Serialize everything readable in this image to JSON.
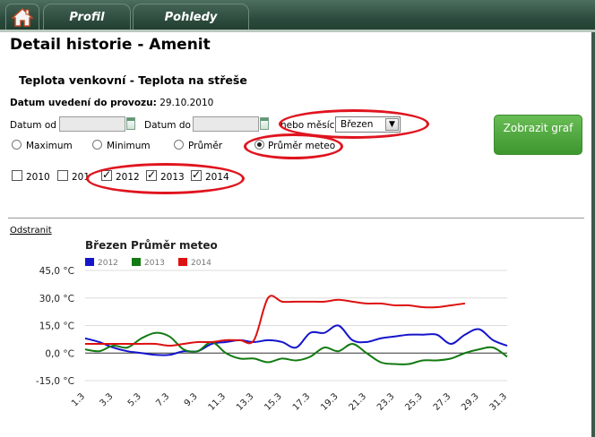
{
  "nav": {
    "profil": "Profil",
    "pohledy": "Pohledy"
  },
  "page": {
    "title": "Detail historie - Amenit",
    "subtitle": "Teplota venkovní - Teplota na střeše",
    "datum_label": "Datum uvedení do provozu:",
    "datum_value": "29.10.2010"
  },
  "filters": {
    "datum_od_label": "Datum od",
    "datum_do_label": "Datum do",
    "datum_od_value": "",
    "datum_do_value": "",
    "mesic_label": "nebo měsíc",
    "mesic_value": "Březen",
    "submit_label": "Zobrazit graf",
    "aggregations": [
      {
        "label": "Maximum",
        "selected": false
      },
      {
        "label": "Minimum",
        "selected": false
      },
      {
        "label": "Průměr",
        "selected": false
      },
      {
        "label": "Průměr meteo",
        "selected": true
      }
    ],
    "years": [
      {
        "label": "2010",
        "checked": false
      },
      {
        "label": "201",
        "checked": false
      },
      {
        "label": "2012",
        "checked": true
      },
      {
        "label": "2013",
        "checked": true
      },
      {
        "label": "2014",
        "checked": true
      }
    ]
  },
  "remove_link": "Odstranit",
  "chart_data": {
    "type": "line",
    "title": "Březen Průměr meteo",
    "xlabel": "",
    "ylabel": "",
    "ylim": [
      -15,
      45
    ],
    "y_ticks": [
      "45,0 °C",
      "30,0 °C",
      "15,0 °C",
      "0,0 °C",
      "-15,0 °C"
    ],
    "y_tick_values": [
      45,
      30,
      15,
      0,
      -15
    ],
    "x_tick_labels": [
      "1.3",
      "3.3",
      "5.3",
      "7.3",
      "9.3",
      "11.3",
      "13.3",
      "15.3",
      "17.3",
      "19.3",
      "21.3",
      "23.3",
      "25.3",
      "27.3",
      "29.3",
      "31.3"
    ],
    "x": [
      1,
      2,
      3,
      4,
      5,
      6,
      7,
      8,
      9,
      10,
      11,
      12,
      13,
      14,
      15,
      16,
      17,
      18,
      19,
      20,
      21,
      22,
      23,
      24,
      25,
      26,
      27,
      28,
      29,
      30,
      31
    ],
    "grid": true,
    "legend_position": "top-left",
    "series": [
      {
        "name": "2012",
        "color": "#1515cc",
        "values": [
          8,
          6,
          3,
          1,
          0,
          -1,
          -1,
          1,
          1,
          5,
          6,
          7,
          6,
          7,
          6,
          3,
          11,
          11,
          15,
          7,
          6,
          8,
          9,
          10,
          10,
          10,
          5,
          10,
          13,
          7,
          4
        ]
      },
      {
        "name": "2013",
        "color": "#127a12",
        "values": [
          2,
          1,
          4,
          3,
          8,
          11,
          9,
          2,
          1,
          6,
          0,
          -3,
          -3,
          -5,
          -3,
          -4,
          -2,
          3,
          1,
          5,
          0,
          -5,
          -6,
          -6,
          -4,
          -4,
          -3,
          0,
          2,
          3,
          -2
        ]
      },
      {
        "name": "2014",
        "color": "#dd1111",
        "values": [
          5,
          5,
          5,
          5,
          5,
          5,
          4,
          5,
          6,
          6,
          7,
          7,
          7,
          30,
          28,
          28,
          28,
          28,
          29,
          28,
          27,
          27,
          26,
          26,
          25,
          25,
          26,
          27,
          null,
          null,
          null
        ]
      }
    ]
  }
}
